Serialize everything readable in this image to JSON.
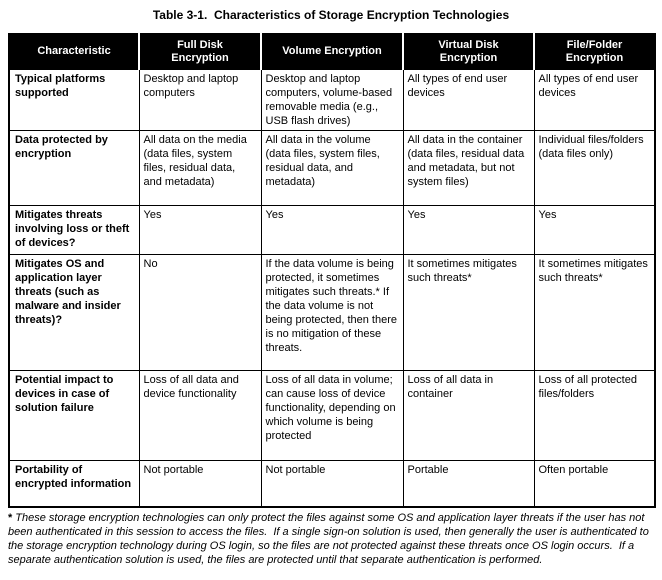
{
  "page": {
    "title": "Table 3-1.  Characteristics of Storage Encryption Technologies"
  },
  "table": {
    "columns": [
      {
        "id": "characteristic",
        "label": "Characteristic"
      },
      {
        "id": "full_disk",
        "label": "Full Disk\nEncryption"
      },
      {
        "id": "volume",
        "label": "Volume Encryption"
      },
      {
        "id": "virtual_disk",
        "label": "Virtual Disk\nEncryption"
      },
      {
        "id": "file_folder",
        "label": "File/Folder\nEncryption"
      }
    ],
    "rows": [
      {
        "characteristic": "Typical platforms supported",
        "full_disk": "Desktop and laptop computers",
        "volume": "Desktop and laptop computers, volume-based removable media (e.g., USB flash drives)",
        "virtual_disk": "All types of end user devices",
        "file_folder": "All types of end user devices"
      },
      {
        "characteristic": "Data protected by encryption",
        "full_disk": "All data on the media (data files, system files, residual data, and metadata)",
        "volume": "All data in the volume (data files, system files, residual data, and metadata)",
        "virtual_disk": "All data in the container (data files, residual data and metadata, but not system files)",
        "file_folder": "Individual files/folders (data files only)"
      },
      {
        "characteristic": "Mitigates threats involving loss or theft of devices?",
        "full_disk": "Yes",
        "volume": "Yes",
        "virtual_disk": "Yes",
        "file_folder": "Yes"
      },
      {
        "characteristic": "Mitigates OS and application layer threats (such as malware and insider threats)?",
        "full_disk": "No",
        "volume": "If the data volume is being protected, it sometimes mitigates such threats.* If the data volume is not being protected, then there is no mitigation of these threats.",
        "virtual_disk": "It sometimes mitigates such threats*",
        "file_folder": "It sometimes mitigates such threats*"
      },
      {
        "characteristic": "Potential impact to devices in case of solution failure",
        "full_disk": "Loss of all data and device functionality",
        "volume": "Loss of all data in volume; can cause loss of device functionality, depending on which volume is being protected",
        "virtual_disk": "Loss of all data in container",
        "file_folder": "Loss of all protected files/folders"
      },
      {
        "characteristic": "Portability of encrypted information",
        "full_disk": "Not portable",
        "volume": "Not portable",
        "virtual_disk": "Portable",
        "file_folder": "Often portable"
      }
    ]
  },
  "footnote": {
    "marker": "*",
    "text": "These storage encryption technologies can only protect the files against some OS and application layer threats if the user has not been authenticated in this session to access the files.  If a single sign-on solution is used, then generally the user is authenticated to the storage encryption technology during OS login, so the files are not protected against these threats once OS login occurs.  If a separate authentication solution is used, the files are protected until that separate authentication is performed.",
    "text_color": "#000000"
  },
  "colors": {
    "header_background": "#000000",
    "header_text": "#ffffff",
    "border": "#000000",
    "page_background": "#ffffff"
  }
}
